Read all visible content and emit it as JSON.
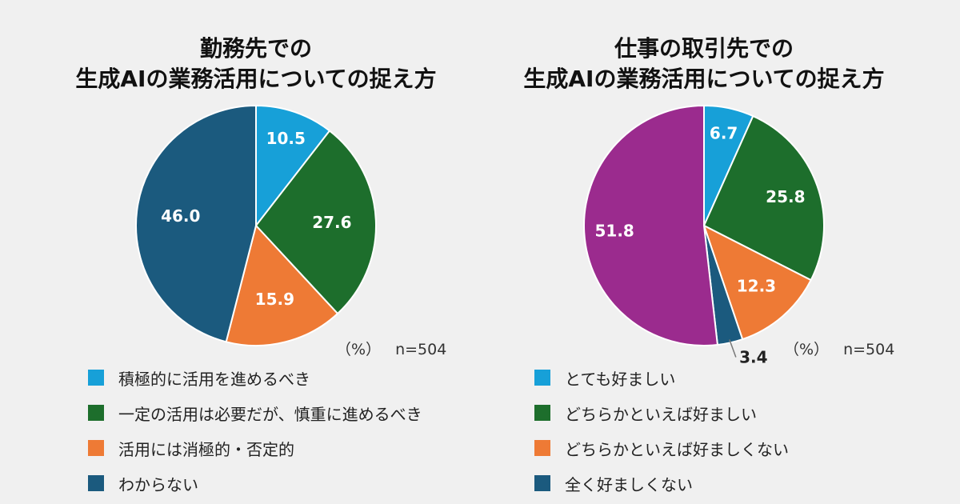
{
  "chart_data": [
    {
      "type": "pie",
      "title": [
        "勤務先での",
        "生成AIの業務活用についての捉え方"
      ],
      "unit_label": "（%）",
      "n_label": "n=504",
      "categories": [
        "積極的に活用を進めるべき",
        "一定の活用は必要だが、慎重に進めるべき",
        "活用には消極的・否定的",
        "わからない"
      ],
      "values": [
        10.5,
        27.6,
        15.9,
        46.0
      ],
      "value_labels": [
        "10.5",
        "27.6",
        "15.9",
        "46.0"
      ],
      "colors": [
        "#17a0d8",
        "#1d6e2c",
        "#ee7a35",
        "#1b5a7e"
      ]
    },
    {
      "type": "pie",
      "title": [
        "仕事の取引先での",
        "生成AIの業務活用についての捉え方"
      ],
      "unit_label": "（%）",
      "n_label": "n=504",
      "categories": [
        "とても好ましい",
        "どちらかといえば好ましい",
        "どちらかといえば好ましくない",
        "全く好ましくない",
        ""
      ],
      "values": [
        6.7,
        25.8,
        12.3,
        3.4,
        51.8
      ],
      "value_labels": [
        "6.7",
        "25.8",
        "12.3",
        "3.4",
        "51.8"
      ],
      "colors": [
        "#17a0d8",
        "#1d6e2c",
        "#ee7a35",
        "#1b5a7e",
        "#9b2b8e"
      ]
    }
  ]
}
